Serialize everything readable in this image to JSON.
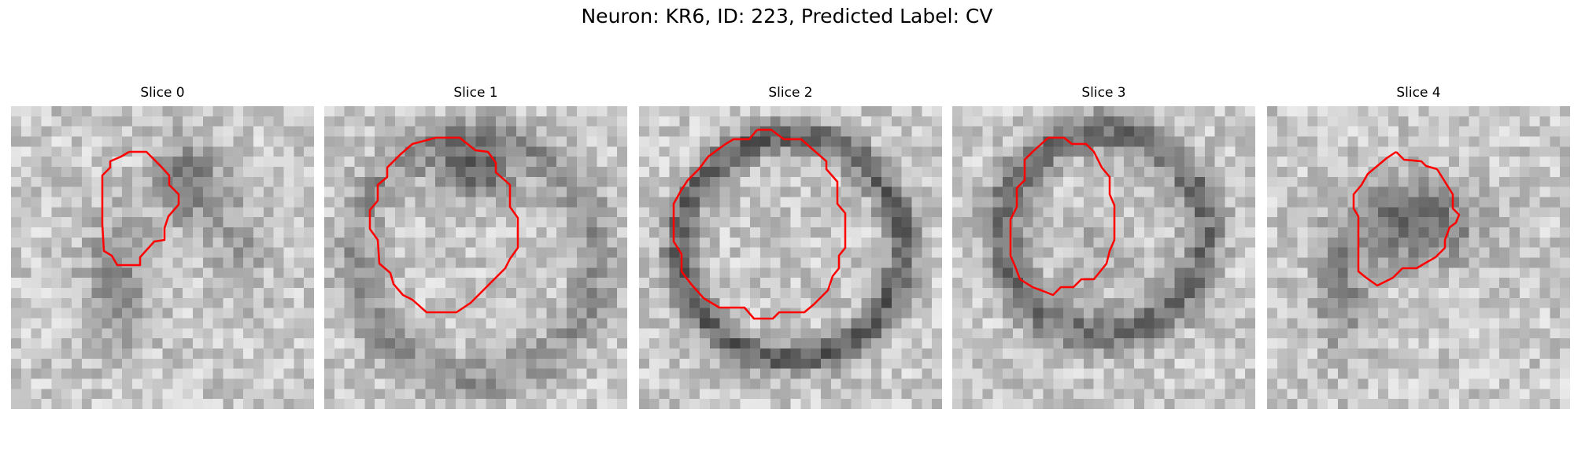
{
  "figure": {
    "title": "Neuron: KR6, ID: 223, Predicted Label: CV"
  },
  "colors": {
    "contour": "#ff0000",
    "background": "#ffffff"
  },
  "slices": [
    {
      "label": "Slice 0"
    },
    {
      "label": "Slice 1"
    },
    {
      "label": "Slice 2"
    },
    {
      "label": "Slice 3"
    },
    {
      "label": "Slice 4"
    }
  ]
}
